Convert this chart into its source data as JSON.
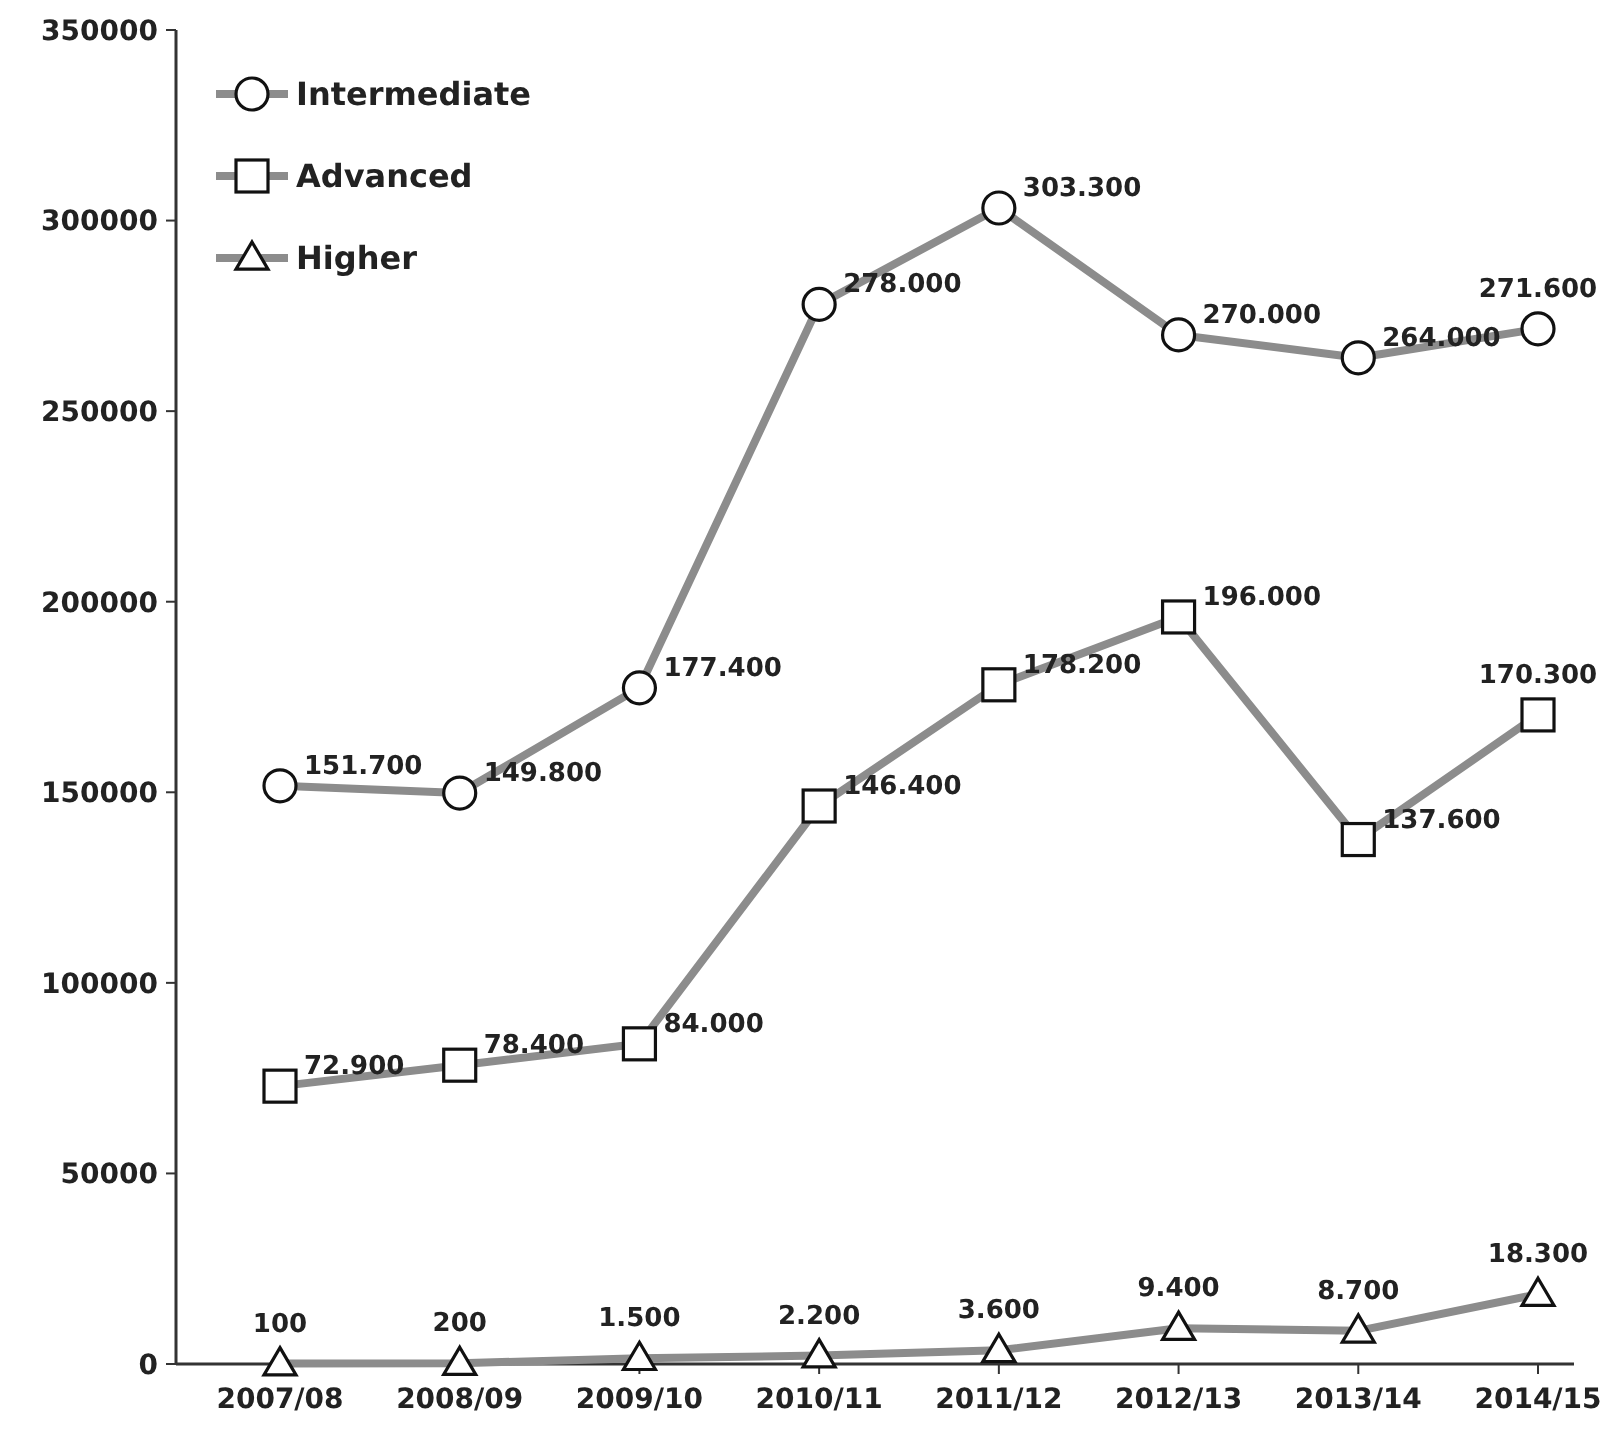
{
  "chart_data": {
    "type": "line",
    "categories": [
      "2007/08",
      "2008/09",
      "2009/10",
      "2010/11",
      "2011/12",
      "2012/13",
      "2013/14",
      "2014/15"
    ],
    "ylim": [
      0,
      350000
    ],
    "yticks": [
      0,
      50000,
      100000,
      150000,
      200000,
      250000,
      300000,
      350000
    ],
    "grid": false,
    "legend": "top left",
    "line_style": "solid",
    "series": [
      {
        "name": "Intermediate",
        "color": "#8c8c8c",
        "marker": "circle",
        "values": [
          151700,
          149800,
          177400,
          278000,
          303300,
          270000,
          264000,
          271600
        ],
        "value_labels": [
          "151.700",
          "149.800",
          "177.400",
          "278.000",
          "303.300",
          "270.000",
          "264.000",
          "271.600"
        ]
      },
      {
        "name": "Advanced",
        "color": "#8c8c8c",
        "marker": "square",
        "values": [
          72900,
          78400,
          84000,
          146400,
          178200,
          196000,
          137600,
          170300
        ],
        "value_labels": [
          "72.900",
          "78.400",
          "84.000",
          "146.400",
          "178.200",
          "196.000",
          "137.600",
          "170.300"
        ]
      },
      {
        "name": "Higher",
        "color": "#8c8c8c",
        "marker": "triangle",
        "values": [
          100,
          200,
          1500,
          2200,
          3600,
          9400,
          8700,
          18300
        ],
        "value_labels": [
          "100",
          "200",
          "1.500",
          "2.200",
          "3.600",
          "9.400",
          "8.700",
          "18.300"
        ]
      }
    ]
  }
}
